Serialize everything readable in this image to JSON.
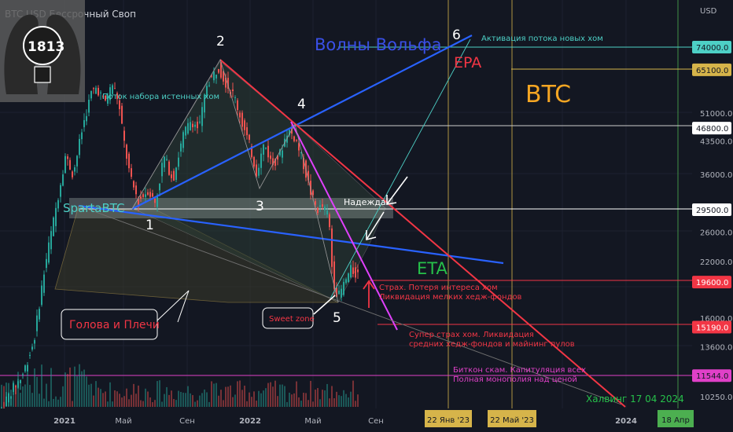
{
  "chart_data": {
    "type": "line",
    "symbol_label": "BTC  USD Бессрочный Своп",
    "currency_label": "USD",
    "big_label": "BTC",
    "price_axis_ticks": [
      {
        "value": 51000,
        "label": "51000.0"
      },
      {
        "value": 43500,
        "label": "43500.0"
      },
      {
        "value": 36000,
        "label": "36000.0"
      },
      {
        "value": 26000,
        "label": "26000.0"
      },
      {
        "value": 22000,
        "label": "22000.0"
      },
      {
        "value": 16000,
        "label": "16000.0"
      },
      {
        "value": 13600,
        "label": "13600.0"
      },
      {
        "value": 10250,
        "label": "10250.0"
      }
    ],
    "price_levels": [
      {
        "value": 74000,
        "label": "74000.0",
        "color": "#4dd0c6",
        "text_color": "#131722"
      },
      {
        "value": 65100,
        "label": "65100.0",
        "color": "#d6b44a",
        "text_color": "#131722"
      },
      {
        "value": 46800,
        "label": "46800.0",
        "color": "#ffffff",
        "text_color": "#131722"
      },
      {
        "value": 29500,
        "label": "29500.0",
        "color": "#ffffff",
        "text_color": "#131722"
      },
      {
        "value": 19600,
        "label": "19600.0",
        "color": "#f23645",
        "text_color": "#ffffff"
      },
      {
        "value": 15190,
        "label": "15190.0",
        "color": "#f23645",
        "text_color": "#ffffff"
      },
      {
        "value": 11544,
        "label": "11544.0",
        "color": "#e040c8",
        "text_color": "#131722"
      }
    ],
    "time_axis_ticks": [
      "2021",
      "Май",
      "Сен",
      "2022",
      "Май",
      "Сен",
      "2024"
    ],
    "time_axis_highlights": [
      {
        "label": "22 Янв '23",
        "color": "#d6b44a",
        "text_color": "#131722"
      },
      {
        "label": "22 Май '23",
        "color": "#d6b44a",
        "text_color": "#131722"
      },
      {
        "label": "18 Апр",
        "color": "#4caf50",
        "text_color": "#131722"
      }
    ],
    "wave_points": [
      "1",
      "2",
      "3",
      "4",
      "5",
      "6"
    ],
    "annotations": {
      "title": "Волны Вольфа",
      "epa": "EPA",
      "eta": "ETA",
      "spartabtc": "SpartaBTC",
      "hope": "Надежда",
      "flow": "Поток набора истенных хом",
      "activation": "Активация потока новых хом",
      "sweet": "Sweet zone",
      "head_shoulders": "Голова и Плечи",
      "fear1": "Страх. Потеря интереса хом",
      "fear2": "Ликвидация мелких хедж-фондов",
      "superfear1": "Супер страх хом. Ликвидация",
      "superfear2": "средних хедж-фондов и майнинг пулов",
      "scam1": "Биткон скам. Капитуляция всех",
      "scam2": "Полная монополия над ценой",
      "halving": "Халвинг 17 04 2024"
    },
    "logo_number": "1813",
    "colors": {
      "background": "#131722",
      "up": "#26a69a",
      "down": "#ef5350",
      "wolfe_line": "#2962ff",
      "resistance": "#f23645",
      "projection": "#e040fb",
      "title_blue": "#3a50e8",
      "eta_green": "#26c04a",
      "btc_orange": "#f5a623"
    }
  }
}
